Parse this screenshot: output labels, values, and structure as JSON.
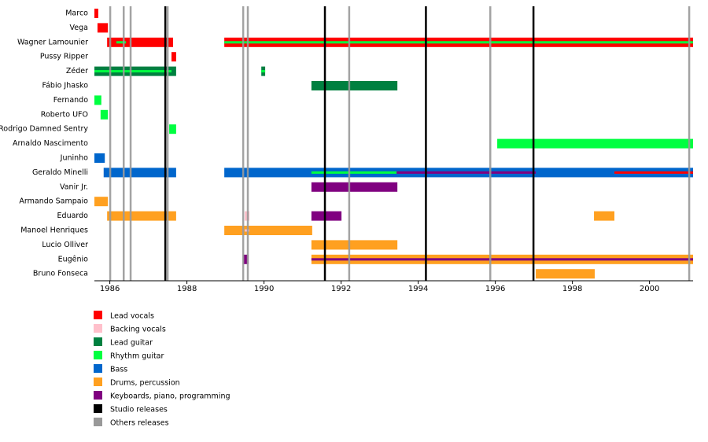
{
  "chart_data": {
    "type": "timeline",
    "xlim": [
      1985.6,
      2001.13
    ],
    "xticks": [
      1986,
      1988,
      1990,
      1992,
      1994,
      1996,
      1998,
      2000
    ],
    "roles": [
      {
        "name": "Lead vocals",
        "color": "#ff0000"
      },
      {
        "name": "Backing vocals",
        "color": "#ffc0cb"
      },
      {
        "name": "Lead guitar",
        "color": "#008040"
      },
      {
        "name": "Rhythm guitar",
        "color": "#00ff40"
      },
      {
        "name": "Bass",
        "color": "#0066cc"
      },
      {
        "name": "Drums, percussion",
        "color": "#ffa020"
      },
      {
        "name": "Keyboards, piano, programming",
        "color": "#800080"
      }
    ],
    "markers": [
      {
        "name": "Studio releases",
        "color": "#000000",
        "values": [
          1987.44,
          1991.58,
          1994.2,
          1996.99
        ]
      },
      {
        "name": "Others releases",
        "color": "#999999",
        "values": [
          1986.01,
          1986.36,
          1986.54,
          1987.5,
          1989.46,
          1989.58,
          1992.21,
          1995.87,
          2001.03
        ]
      }
    ],
    "members": [
      {
        "name": "Marco",
        "periods": [
          {
            "start": 1985.6,
            "end": 1985.7,
            "role": "Lead vocals"
          }
        ],
        "stripes": []
      },
      {
        "name": "Vega",
        "periods": [
          {
            "start": 1985.68,
            "end": 1985.95,
            "role": "Lead vocals"
          }
        ],
        "stripes": []
      },
      {
        "name": "Wagner Lamounier",
        "periods": [
          {
            "start": 1985.93,
            "end": 1987.64,
            "role": "Lead vocals"
          },
          {
            "start": 1988.97,
            "end": 2001.13,
            "role": "Lead vocals"
          }
        ],
        "stripes": [
          {
            "start": 1986.17,
            "end": 1986.42,
            "role": "Rhythm guitar"
          },
          {
            "start": 1988.97,
            "end": 2001.13,
            "role": "Rhythm guitar"
          }
        ]
      },
      {
        "name": "Pussy Ripper",
        "periods": [
          {
            "start": 1987.6,
            "end": 1987.72,
            "role": "Lead vocals"
          }
        ],
        "stripes": []
      },
      {
        "name": "Zéder",
        "periods": [
          {
            "start": 1985.6,
            "end": 1987.72,
            "role": "Lead guitar"
          },
          {
            "start": 1989.93,
            "end": 1990.03,
            "role": "Lead guitar"
          }
        ],
        "stripes": [
          {
            "start": 1985.6,
            "end": 1987.6,
            "role": "Rhythm guitar"
          },
          {
            "start": 1989.93,
            "end": 1990.03,
            "role": "Rhythm guitar"
          }
        ]
      },
      {
        "name": "Fábio Jhasko",
        "periods": [
          {
            "start": 1991.23,
            "end": 1993.46,
            "role": "Lead guitar"
          }
        ],
        "stripes": []
      },
      {
        "name": "Fernando",
        "periods": [
          {
            "start": 1985.6,
            "end": 1985.78,
            "role": "Rhythm guitar"
          }
        ],
        "stripes": []
      },
      {
        "name": "Roberto UFO",
        "periods": [
          {
            "start": 1985.76,
            "end": 1985.95,
            "role": "Rhythm guitar"
          }
        ],
        "stripes": []
      },
      {
        "name": "Rodrigo Damned Sentry",
        "periods": [
          {
            "start": 1987.54,
            "end": 1987.72,
            "role": "Rhythm guitar"
          }
        ],
        "stripes": []
      },
      {
        "name": "Arnaldo Nascimento",
        "periods": [
          {
            "start": 1996.05,
            "end": 2001.13,
            "role": "Rhythm guitar"
          }
        ],
        "stripes": []
      },
      {
        "name": "Juninho",
        "periods": [
          {
            "start": 1985.6,
            "end": 1985.87,
            "role": "Bass"
          }
        ],
        "stripes": []
      },
      {
        "name": "Geraldo Minelli",
        "periods": [
          {
            "start": 1985.84,
            "end": 1987.72,
            "role": "Bass"
          },
          {
            "start": 1988.97,
            "end": 2001.13,
            "role": "Bass"
          }
        ],
        "stripes": [
          {
            "start": 1991.23,
            "end": 1993.44,
            "role": "Rhythm guitar"
          },
          {
            "start": 1993.44,
            "end": 1997.05,
            "role": "Keyboards, piano, programming"
          },
          {
            "start": 1999.09,
            "end": 2001.13,
            "role": "Lead vocals"
          }
        ]
      },
      {
        "name": "Vanir Jr.",
        "periods": [
          {
            "start": 1991.23,
            "end": 1993.46,
            "role": "Keyboards, piano, programming"
          }
        ],
        "stripes": []
      },
      {
        "name": "Armando Sampaio",
        "periods": [
          {
            "start": 1985.6,
            "end": 1985.95,
            "role": "Drums, percussion"
          }
        ],
        "stripes": []
      },
      {
        "name": "Eduardo",
        "periods": [
          {
            "start": 1985.93,
            "end": 1987.72,
            "role": "Drums, percussion"
          },
          {
            "start": 1989.5,
            "end": 1989.62,
            "role": "Backing vocals"
          },
          {
            "start": 1991.23,
            "end": 1992.01,
            "role": "Keyboards, piano, programming"
          },
          {
            "start": 1998.56,
            "end": 1999.09,
            "role": "Drums, percussion"
          }
        ],
        "stripes": []
      },
      {
        "name": "Manoel Henriques",
        "periods": [
          {
            "start": 1988.97,
            "end": 1991.25,
            "role": "Drums, percussion"
          }
        ],
        "stripes": [
          {
            "start": 1989.5,
            "end": 1989.62,
            "role": "Backing vocals"
          }
        ]
      },
      {
        "name": "Lucio Olliver",
        "periods": [
          {
            "start": 1991.23,
            "end": 1993.46,
            "role": "Drums, percussion"
          }
        ],
        "stripes": []
      },
      {
        "name": "Eugênio",
        "periods": [
          {
            "start": 1989.46,
            "end": 1989.6,
            "role": "Keyboards, piano, programming"
          },
          {
            "start": 1991.23,
            "end": 2001.13,
            "role": "Drums, percussion"
          }
        ],
        "stripes": [
          {
            "start": 1991.23,
            "end": 2001.13,
            "role": "Keyboards, piano, programming"
          }
        ]
      },
      {
        "name": "Bruno Fonseca",
        "periods": [
          {
            "start": 1997.05,
            "end": 1998.58,
            "role": "Drums, percussion"
          }
        ],
        "stripes": []
      }
    ]
  }
}
